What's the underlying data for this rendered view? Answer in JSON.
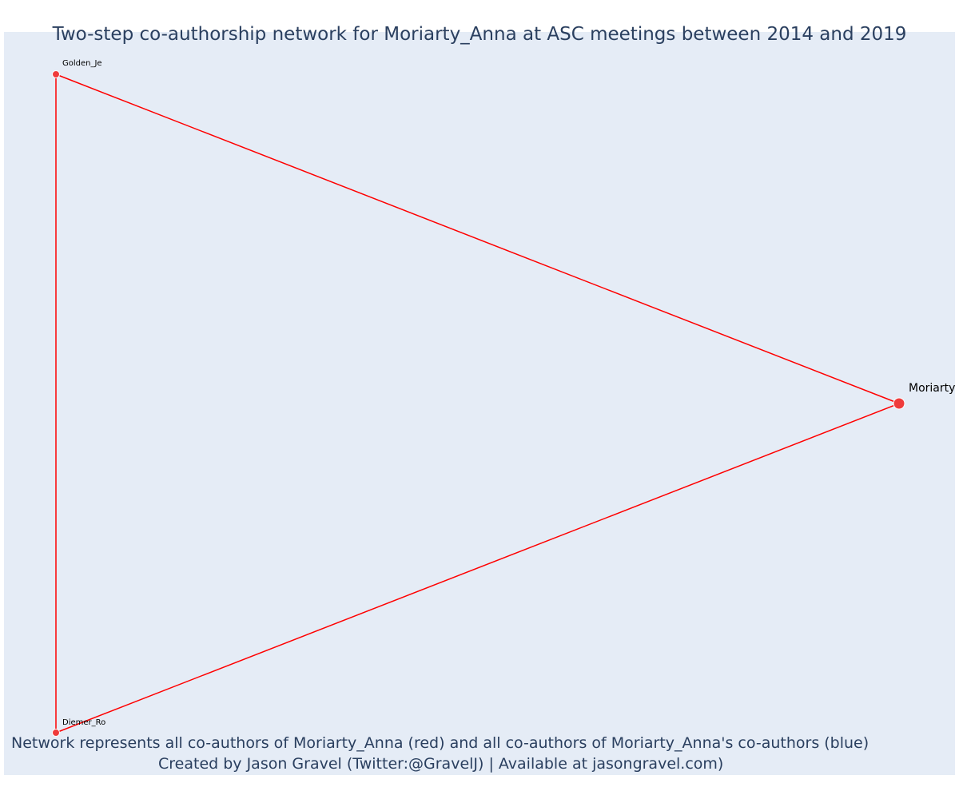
{
  "title": "Two-step co-authorship network for Moriarty_Anna at ASC meetings between 2014 and 2019",
  "caption": {
    "line1": "Network represents all co-authors of Moriarty_Anna (red) and all co-authors of Moriarty_Anna's co-authors (blue)",
    "line2": "Created by Jason Gravel (Twitter:@GravelJ) | Available at jasongravel.com)"
  },
  "colors": {
    "background": "#e5ecf6",
    "edge": "#ff0000",
    "first_degree_node": "#ef3b3b",
    "text": "#2a3f5f"
  },
  "nodes": [
    {
      "id": "golden",
      "label": "Golden_Je",
      "degree": "co-author"
    },
    {
      "id": "diemer",
      "label": "Diemer_Ro",
      "degree": "co-author"
    },
    {
      "id": "moriarty",
      "label": "Moriarty",
      "degree": "focal"
    }
  ],
  "edges": [
    {
      "source": "golden",
      "target": "moriarty"
    },
    {
      "source": "diemer",
      "target": "moriarty"
    },
    {
      "source": "golden",
      "target": "diemer"
    }
  ]
}
